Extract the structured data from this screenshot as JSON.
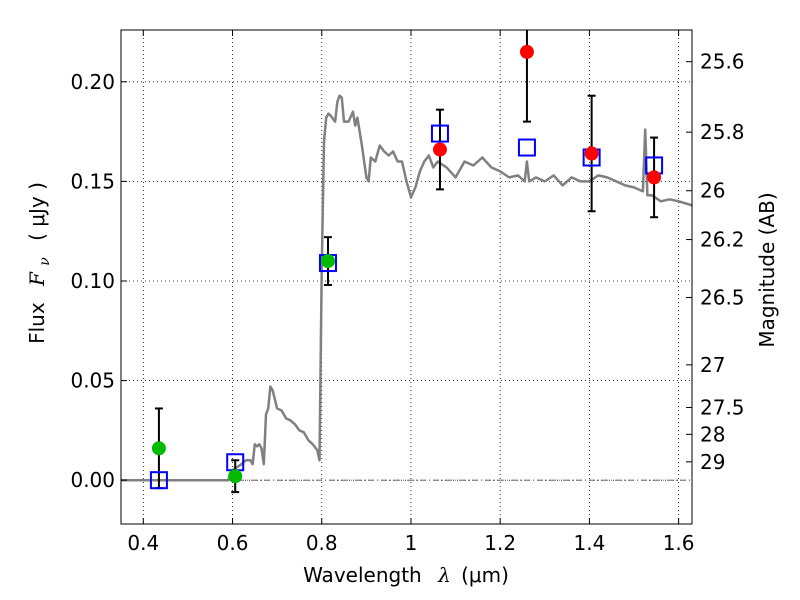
{
  "chart_data": {
    "type": "scatter",
    "xlabel_text": "Wavelength",
    "xlabel_symbol": "λ",
    "xlabel_unit": "(μm)",
    "ylabel_text": "Flux",
    "ylabel_symbol": "F",
    "ylabel_symbol_sub": "ν",
    "ylabel_unit": "( μJy )",
    "y2label": "Magnitude (AB)",
    "xlim": [
      0.35,
      1.63
    ],
    "ylim": [
      -0.022,
      0.226
    ],
    "grid": true,
    "xticks": [
      0.4,
      0.6,
      0.8,
      1.0,
      1.2,
      1.4,
      1.6
    ],
    "xtick_labels": [
      "0.4",
      "0.6",
      "0.8",
      "1",
      "1.2",
      "1.4",
      "1.6"
    ],
    "yticks": [
      0.0,
      0.05,
      0.1,
      0.15,
      0.2
    ],
    "ytick_labels": [
      "0.00",
      "0.05",
      "0.10",
      "0.15",
      "0.20"
    ],
    "y2ticks": [
      {
        "label": "25.6",
        "flux": 0.2101
      },
      {
        "label": "25.8",
        "flux": 0.1747
      },
      {
        "label": "26",
        "flux": 0.1453
      },
      {
        "label": "26.2",
        "flux": 0.1208
      },
      {
        "label": "26.5",
        "flux": 0.0917
      },
      {
        "label": "27",
        "flux": 0.0579
      },
      {
        "label": "27.5",
        "flux": 0.0365
      },
      {
        "label": "28",
        "flux": 0.023
      },
      {
        "label": "29",
        "flux": 0.0092
      }
    ],
    "model_color": "#808080",
    "model_spectrum": {
      "x": [
        0.35,
        0.58,
        0.59,
        0.6,
        0.62,
        0.63,
        0.64,
        0.645,
        0.65,
        0.655,
        0.66,
        0.665,
        0.67,
        0.675,
        0.68,
        0.685,
        0.69,
        0.7,
        0.71,
        0.72,
        0.73,
        0.74,
        0.75,
        0.76,
        0.77,
        0.78,
        0.79,
        0.795,
        0.8,
        0.805,
        0.81,
        0.815,
        0.82,
        0.83,
        0.835,
        0.84,
        0.845,
        0.85,
        0.86,
        0.87,
        0.875,
        0.88,
        0.89,
        0.9,
        0.905,
        0.91,
        0.92,
        0.93,
        0.94,
        0.95,
        0.96,
        0.97,
        0.98,
        0.99,
        1.0,
        1.01,
        1.02,
        1.03,
        1.04,
        1.05,
        1.06,
        1.08,
        1.1,
        1.12,
        1.14,
        1.16,
        1.18,
        1.2,
        1.22,
        1.24,
        1.255,
        1.26,
        1.265,
        1.28,
        1.3,
        1.32,
        1.34,
        1.36,
        1.38,
        1.4,
        1.42,
        1.44,
        1.46,
        1.48,
        1.5,
        1.51,
        1.52,
        1.525,
        1.53,
        1.54,
        1.56,
        1.58,
        1.6,
        1.63
      ],
      "y": [
        0.0,
        0.0,
        0.0,
        0.005,
        0.008,
        0.01,
        0.01,
        0.008,
        0.018,
        0.017,
        0.018,
        0.016,
        0.008,
        0.033,
        0.036,
        0.047,
        0.045,
        0.036,
        0.035,
        0.031,
        0.03,
        0.028,
        0.025,
        0.024,
        0.02,
        0.018,
        0.015,
        0.01,
        0.105,
        0.17,
        0.182,
        0.184,
        0.183,
        0.18,
        0.19,
        0.193,
        0.192,
        0.18,
        0.18,
        0.185,
        0.178,
        0.182,
        0.168,
        0.152,
        0.15,
        0.162,
        0.16,
        0.168,
        0.165,
        0.163,
        0.165,
        0.16,
        0.16,
        0.15,
        0.142,
        0.147,
        0.155,
        0.16,
        0.163,
        0.157,
        0.16,
        0.157,
        0.152,
        0.16,
        0.158,
        0.162,
        0.157,
        0.155,
        0.152,
        0.153,
        0.15,
        0.16,
        0.15,
        0.152,
        0.15,
        0.153,
        0.148,
        0.152,
        0.15,
        0.15,
        0.153,
        0.152,
        0.15,
        0.148,
        0.147,
        0.146,
        0.145,
        0.176,
        0.143,
        0.143,
        0.14,
        0.141,
        0.14,
        0.138
      ]
    },
    "model_points": {
      "color": "#0000ff",
      "x": [
        0.435,
        0.606,
        0.814,
        1.065,
        1.26,
        1.405,
        1.545
      ],
      "y": [
        0.0,
        0.009,
        0.109,
        0.174,
        0.167,
        0.162,
        0.158
      ]
    },
    "detections": {
      "color": "#ff0000",
      "x": [
        1.065,
        1.26,
        1.405,
        1.545
      ],
      "y": [
        0.166,
        0.215,
        0.164,
        0.152
      ],
      "yerr": [
        0.02,
        0.035,
        0.029,
        0.02
      ]
    },
    "other_points": {
      "color": "#00bb00",
      "x": [
        0.435,
        0.606,
        0.814
      ],
      "y": [
        0.016,
        0.002,
        0.11
      ],
      "yerr": [
        0.02,
        0.008,
        0.012
      ]
    },
    "zero_line": 0.0
  }
}
